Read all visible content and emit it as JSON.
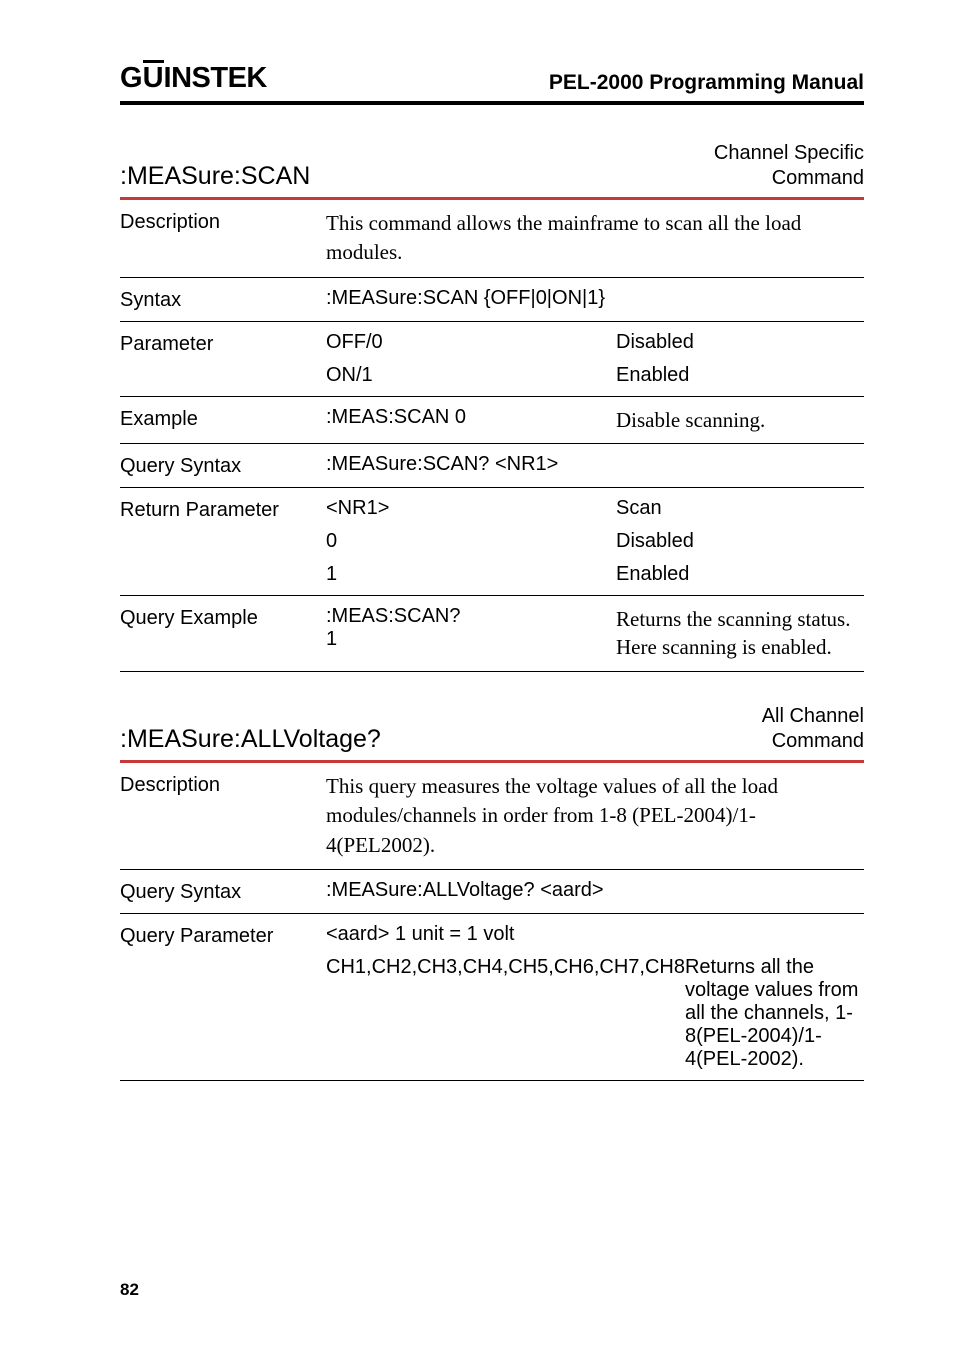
{
  "header": {
    "logo_g": "G",
    "logo_u": "U",
    "logo_rest": "INSTEK",
    "manual_title": "PEL-2000 Programming Manual"
  },
  "cmd1": {
    "name": ":MEASure:SCAN",
    "tag_line1": "Channel Specific",
    "tag_line2": "Command",
    "description_label": "Description",
    "description": "This command allows the mainframe to scan all the load modules.",
    "syntax_label": "Syntax",
    "syntax": ":MEASure:SCAN {OFF|0|ON|1}",
    "param_label": "Parameter",
    "param_rows": [
      {
        "left": "OFF/0",
        "right": "Disabled"
      },
      {
        "left": "ON/1",
        "right": "Enabled"
      }
    ],
    "example_label": "Example",
    "example_left": ":MEAS:SCAN 0",
    "example_right": "Disable scanning.",
    "qsyntax_label": "Query Syntax",
    "qsyntax": ":MEASure:SCAN? <NR1>",
    "rparam_label": "Return Parameter",
    "rparam_rows": [
      {
        "left": "<NR1>",
        "right": "Scan"
      },
      {
        "left": "0",
        "right": "Disabled"
      },
      {
        "left": "1",
        "right": "Enabled"
      }
    ],
    "qexample_label": "Query Example",
    "qexample_left1": ":MEAS:SCAN?",
    "qexample_left2": "1",
    "qexample_right": "Returns the scanning status. Here scanning is enabled."
  },
  "cmd2": {
    "name": ":MEASure:ALLVoltage?",
    "tag_line1": "All Channel",
    "tag_line2": "Command",
    "description_label": "Description",
    "description": "This query measures the voltage values of all the load modules/channels in order from 1-8 (PEL-2004)/1-4(PEL2002).",
    "qsyntax_label": "Query Syntax",
    "qsyntax": ":MEASure:ALLVoltage? <aard>",
    "qparam_label": "Query Parameter",
    "qparam_row1_left": "<aard> 1 unit = 1 volt",
    "qparam_row2_left": "CH1,CH2,CH3,CH4,CH5,CH6,CH7,CH8",
    "qparam_row2_right": "Returns all the voltage values from all the channels, 1-8(PEL-2004)/1-4(PEL-2002)."
  },
  "page_number": "82",
  "colors": {
    "accent": "#c73838",
    "text": "#000000",
    "bg": "#ffffff"
  }
}
